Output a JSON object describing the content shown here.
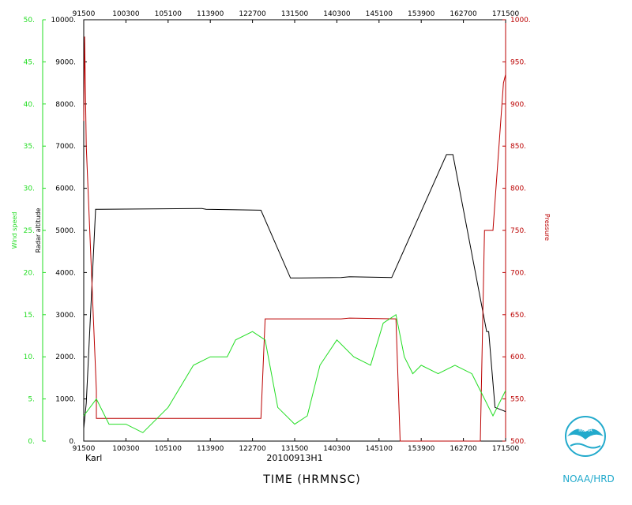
{
  "chart_data": {
    "type": "line",
    "storm_name": "Karl",
    "flight_id": "20100913H1",
    "x_axis_title": "TIME (HRMNSC)",
    "x_ticks": [
      "91500",
      "100300",
      "105100",
      "113900",
      "122700",
      "131500",
      "140300",
      "145100",
      "153900",
      "162700",
      "171500"
    ],
    "xlim": [
      0,
      10
    ],
    "left_axis": {
      "label": "Wind speed",
      "ylim": [
        0,
        50
      ],
      "ticks": [
        "0.",
        "5.",
        "10.",
        "15.",
        "20.",
        "25.",
        "30.",
        "35.",
        "40.",
        "45.",
        "50."
      ],
      "color": "#22dd22"
    },
    "radar_axis": {
      "label": "Radar altitude",
      "ylim": [
        0,
        10000
      ],
      "ticks": [
        "0.",
        "1000.",
        "2000.",
        "3000.",
        "4000.",
        "5000.",
        "6000.",
        "7000.",
        "8000.",
        "9000.",
        "10000."
      ],
      "color": "#000000"
    },
    "right_axis": {
      "label": "Pressure",
      "ylim": [
        500,
        1000
      ],
      "ticks": [
        "500.",
        "550.",
        "600.",
        "650.",
        "700.",
        "750.",
        "800.",
        "850.",
        "900.",
        "950.",
        "1000."
      ],
      "color": "#bb0000"
    },
    "series": [
      {
        "name": "Radar altitude",
        "axis": "radar",
        "color": "#000000",
        "x": [
          0,
          0.06,
          0.28,
          2.8,
          2.9,
          4.2,
          4.9,
          6.1,
          6.3,
          7.3,
          8.6,
          8.75,
          9.55,
          9.6,
          9.75,
          10
        ],
        "y": [
          300,
          900,
          5500,
          5520,
          5500,
          5480,
          3870,
          3880,
          3900,
          3880,
          6800,
          6800,
          2600,
          2600,
          800,
          700
        ]
      },
      {
        "name": "Pressure",
        "axis": "right",
        "color": "#bb0000",
        "x": [
          0,
          0.02,
          0.06,
          0.3,
          0.3,
          2.8,
          2.9,
          4.2,
          4.3,
          4.5,
          5.0,
          6.1,
          6.3,
          7.4,
          7.5,
          8.6,
          8.75,
          9.3,
          9.4,
          9.5,
          9.6,
          9.7,
          9.95,
          10
        ],
        "y": [
          880,
          980,
          850,
          560,
          527,
          527,
          527,
          527,
          645,
          645,
          645,
          645,
          646,
          645,
          500,
          500,
          500,
          500,
          500,
          750,
          750,
          750,
          925,
          935
        ]
      },
      {
        "name": "Wind speed",
        "axis": "left",
        "color": "#22dd22",
        "x": [
          0,
          0.3,
          0.6,
          1.0,
          1.4,
          2.0,
          2.6,
          3.0,
          3.4,
          3.6,
          4.0,
          4.3,
          4.6,
          5.0,
          5.3,
          5.6,
          6.0,
          6.4,
          6.8,
          7.1,
          7.4,
          7.6,
          7.8,
          8.0,
          8.4,
          8.8,
          9.2,
          9.5,
          9.7,
          9.9,
          10
        ],
        "y": [
          3,
          5,
          2,
          2,
          1,
          4,
          9,
          10,
          10,
          12,
          13,
          12,
          4,
          2,
          3,
          9,
          12,
          10,
          9,
          14,
          15,
          10,
          8,
          9,
          8,
          9,
          8,
          5,
          3,
          5,
          6
        ]
      }
    ],
    "grid": false,
    "legend": "none"
  },
  "logo": {
    "agency_label": "NOAA/HRD",
    "emblem_text": "NOAA"
  }
}
